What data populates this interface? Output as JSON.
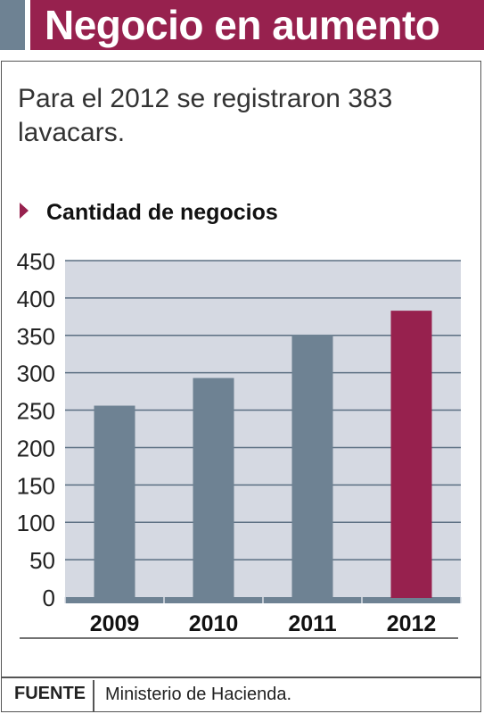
{
  "header": {
    "title": "Negocio en aumento"
  },
  "subtitle": "Para el 2012 se registraron 383 lavacars.",
  "chart_heading": "Cantidad de negocios",
  "source": {
    "label": "FUENTE",
    "text": "Ministerio de Hacienda."
  },
  "colors": {
    "bar_default": "#6e8293",
    "bar_highlight": "#97214e",
    "plot_background": "#d5d9e2",
    "gridline": "#5b6f82"
  },
  "chart_data": {
    "type": "bar",
    "title": "Cantidad de negocios",
    "categories": [
      "2009",
      "2010",
      "2011",
      "2012"
    ],
    "values": [
      256,
      293,
      351,
      383
    ],
    "highlight_category": "2012",
    "ylim": [
      0,
      450
    ],
    "yticks": [
      0,
      50,
      100,
      150,
      200,
      250,
      300,
      350,
      400,
      450
    ],
    "xlabel": "",
    "ylabel": "",
    "grid": true,
    "legend": "none"
  }
}
